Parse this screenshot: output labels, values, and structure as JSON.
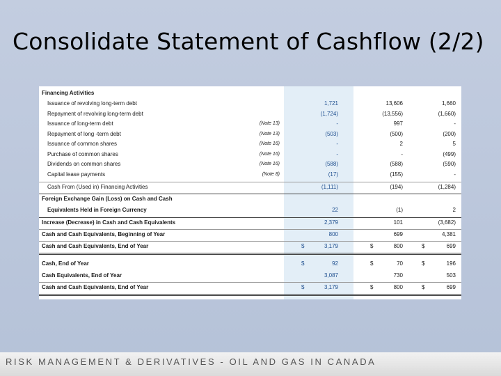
{
  "title": "Consolidate Statement of Cashflow (2/2)",
  "footer": "RISK MANAGEMENT & DERIVATIVES - OIL AND GAS IN CANADA",
  "colors": {
    "background": "#bac5da",
    "highlight_column": "#e3eef7",
    "current_year_text": "#1f4f8f"
  },
  "table": {
    "section_financing": "Financing Activities",
    "rows": [
      {
        "label": "Issuance of revolving long-term debt",
        "note": "",
        "c1": "1,721",
        "c2": "13,606",
        "c3": "1,660"
      },
      {
        "label": "Repayment of revolving long-term debt",
        "note": "",
        "c1": "(1,724)",
        "c2": "(13,556)",
        "c3": "(1,660)"
      },
      {
        "label": "Issuance of long-term debt",
        "note": "(Note 13)",
        "c1": "-",
        "c2": "997",
        "c3": "-"
      },
      {
        "label": "Repayment of long -term debt",
        "note": "(Note 13)",
        "c1": "(503)",
        "c2": "(500)",
        "c3": "(200)"
      },
      {
        "label": "Issuance of common shares",
        "note": "(Note 16)",
        "c1": "-",
        "c2": "2",
        "c3": "5"
      },
      {
        "label": "Purchase of common shares",
        "note": "(Note 16)",
        "c1": "-",
        "c2": "-",
        "c3": "(499)"
      },
      {
        "label": "Dividends on common shares",
        "note": "(Note 16)",
        "c1": "(588)",
        "c2": "(588)",
        "c3": "(590)"
      },
      {
        "label": "Capital lease payments",
        "note": "(Note 8)",
        "c1": "(17)",
        "c2": "(155)",
        "c3": "-"
      }
    ],
    "financing_total": {
      "label": "Cash From (Used in) Financing Activities",
      "c1": "(1,111)",
      "c2": "(194)",
      "c3": "(1,284)"
    },
    "fx_line1": "Foreign Exchange Gain (Loss) on Cash and Cash",
    "fx_line2": {
      "label": "Equivalents Held in Foreign Currency",
      "c1": "22",
      "c2": "(1)",
      "c3": "2"
    },
    "increase": {
      "label": "Increase (Decrease) in Cash and Cash Equivalents",
      "c1": "2,379",
      "c2": "101",
      "c3": "(3,682)"
    },
    "beginning": {
      "label": "Cash and Cash Equivalents, Beginning of Year",
      "c1": "800",
      "c2": "699",
      "c3": "4,381"
    },
    "end1": {
      "label": "Cash and Cash Equivalents, End of Year",
      "cur": "$",
      "c1": "3,179",
      "c2": "800",
      "c3": "699"
    },
    "cash_end": {
      "label": "Cash, End of Year",
      "cur": "$",
      "c1": "92",
      "c2": "70",
      "c3": "196"
    },
    "cash_equiv_end": {
      "label": "Cash Equivalents, End of Year",
      "c1": "3,087",
      "c2": "730",
      "c3": "503"
    },
    "end2": {
      "label": "Cash and Cash Equivalents, End of Year",
      "cur": "$",
      "c1": "3,179",
      "c2": "800",
      "c3": "699"
    }
  }
}
